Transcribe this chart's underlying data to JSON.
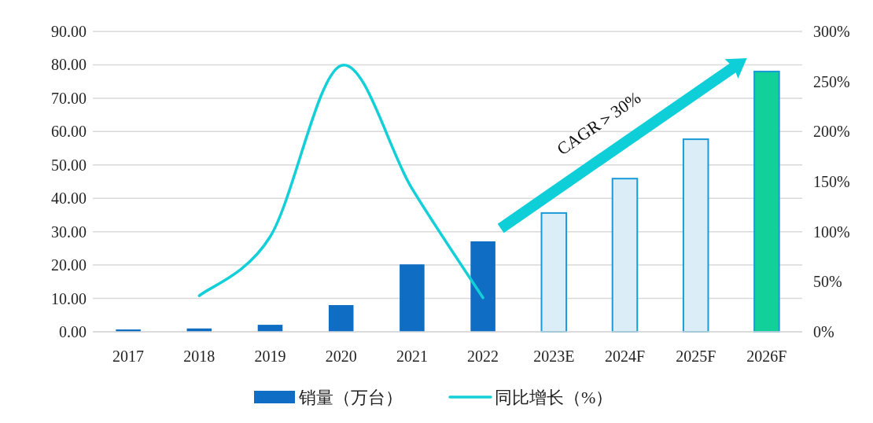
{
  "chart_data": {
    "type": "bar",
    "categories": [
      "2017",
      "2018",
      "2019",
      "2020",
      "2021",
      "2022",
      "2023E",
      "2024F",
      "2025F",
      "2026F"
    ],
    "series": [
      {
        "name": "销量（万台）",
        "color": "#0f6dc4",
        "colors": [
          "#0f6dc4",
          "#0f6dc4",
          "#0f6dc4",
          "#0f6dc4",
          "#0f6dc4",
          "#0f6dc4",
          "#dbeef8",
          "#dbeef8",
          "#dbeef8",
          "#12d09a"
        ],
        "values": [
          0.7,
          1.0,
          2.1,
          8.0,
          20.2,
          27.1,
          35.6,
          45.9,
          57.7,
          78.0
        ]
      },
      {
        "name": "同比增长（%）",
        "type": "line",
        "axis": "y2",
        "color": "#12cfd8",
        "values": [
          null,
          36,
          95,
          266,
          143,
          34,
          null,
          null,
          null,
          null
        ]
      }
    ],
    "ylim": [
      0,
      90
    ],
    "yticks": [
      {
        "value": 0,
        "label": "0.00"
      },
      {
        "value": 10,
        "label": "10.00"
      },
      {
        "value": 20,
        "label": "20.00"
      },
      {
        "value": 30,
        "label": "30.00"
      },
      {
        "value": 40,
        "label": "40.00"
      },
      {
        "value": 50,
        "label": "50.00"
      },
      {
        "value": 60,
        "label": "60.00"
      },
      {
        "value": 70,
        "label": "70.00"
      },
      {
        "value": 80,
        "label": "80.00"
      },
      {
        "value": 90,
        "label": "90.00"
      }
    ],
    "y2lim": [
      0,
      300
    ],
    "y2ticks": [
      {
        "value": 0,
        "label": "0%"
      },
      {
        "value": 50,
        "label": "50%"
      },
      {
        "value": 100,
        "label": "100%"
      },
      {
        "value": 150,
        "label": "150%"
      },
      {
        "value": 200,
        "label": "200%"
      },
      {
        "value": 250,
        "label": "250%"
      },
      {
        "value": 300,
        "label": "300%"
      }
    ],
    "grid": "y",
    "legend": "bottom",
    "annotations": [
      "CAGR＞30%"
    ]
  }
}
